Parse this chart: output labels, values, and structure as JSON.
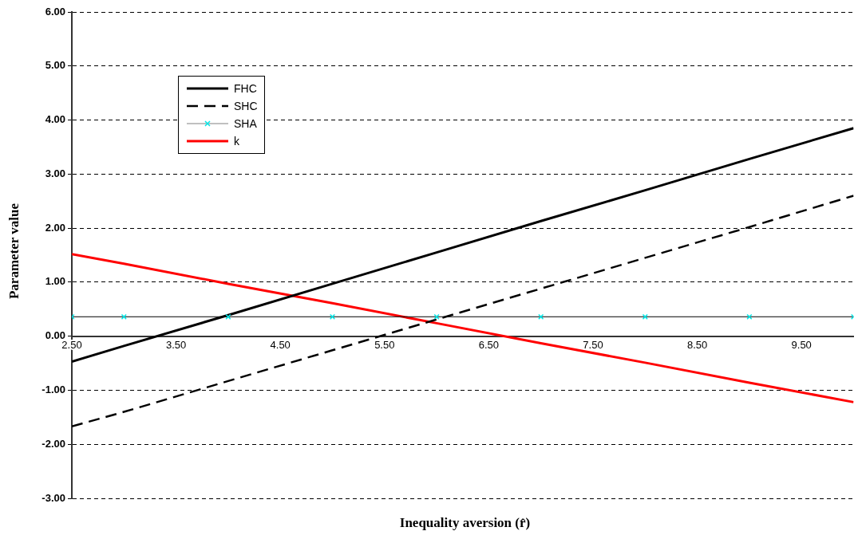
{
  "chart_data": {
    "type": "line",
    "xlabel": "Inequality aversion (r̂)",
    "ylabel": "Parameter value",
    "xlim": [
      2.5,
      10
    ],
    "xticks": [
      {
        "value": 2.5,
        "label": "2.50"
      },
      {
        "value": 3.5,
        "label": "3.50"
      },
      {
        "value": 4.5,
        "label": "4.50"
      },
      {
        "value": 5.5,
        "label": "5.50"
      },
      {
        "value": 6.5,
        "label": "6.50"
      },
      {
        "value": 7.5,
        "label": "7.50"
      },
      {
        "value": 8.5,
        "label": "8.50"
      },
      {
        "value": 9.5,
        "label": "9.50"
      }
    ],
    "ylim": [
      -3,
      6
    ],
    "yticks": [
      {
        "value": -3,
        "label": "-3.00"
      },
      {
        "value": -2,
        "label": "-2.00"
      },
      {
        "value": -1,
        "label": "-1.00"
      },
      {
        "value": 0,
        "label": "0.00"
      },
      {
        "value": 1,
        "label": "1.00"
      },
      {
        "value": 2,
        "label": "2.00"
      },
      {
        "value": 3,
        "label": "3.00"
      },
      {
        "value": 4,
        "label": "4.00"
      },
      {
        "value": 5,
        "label": "5.00"
      },
      {
        "value": 6,
        "label": "6.00"
      }
    ],
    "grid": "y",
    "legend": "top left",
    "series": [
      {
        "name": "FHC",
        "color": "#000000",
        "line_style": "solid",
        "marker": "none",
        "x": [
          2.5,
          3,
          4,
          5,
          6,
          7,
          8,
          9,
          10
        ],
        "values": [
          -0.47,
          -0.18,
          0.39,
          0.97,
          1.55,
          2.13,
          2.7,
          3.28,
          3.85
        ]
      },
      {
        "name": "SHC",
        "color": "#000000",
        "line_style": "dashed",
        "marker": "none",
        "x": [
          2.5,
          3,
          4,
          5,
          6,
          7,
          8,
          9,
          10
        ],
        "values": [
          -1.67,
          -1.4,
          -0.83,
          -0.26,
          0.31,
          0.88,
          1.45,
          2.02,
          2.6
        ]
      },
      {
        "name": "SHA",
        "color": "#00e5e5",
        "line_style": "solid",
        "marker": "cross",
        "x": [
          2.5,
          3,
          4,
          5,
          6,
          7,
          8,
          9,
          10
        ],
        "values": [
          0.36,
          0.36,
          0.36,
          0.36,
          0.36,
          0.36,
          0.36,
          0.36,
          0.36
        ]
      },
      {
        "name": "k",
        "color": "#ff0000",
        "line_style": "solid",
        "marker": "none",
        "x": [
          2.5,
          3,
          4,
          5,
          6,
          7,
          8,
          9,
          10
        ],
        "values": [
          1.52,
          1.34,
          0.97,
          0.61,
          0.24,
          -0.13,
          -0.49,
          -0.86,
          -1.22
        ]
      }
    ]
  }
}
